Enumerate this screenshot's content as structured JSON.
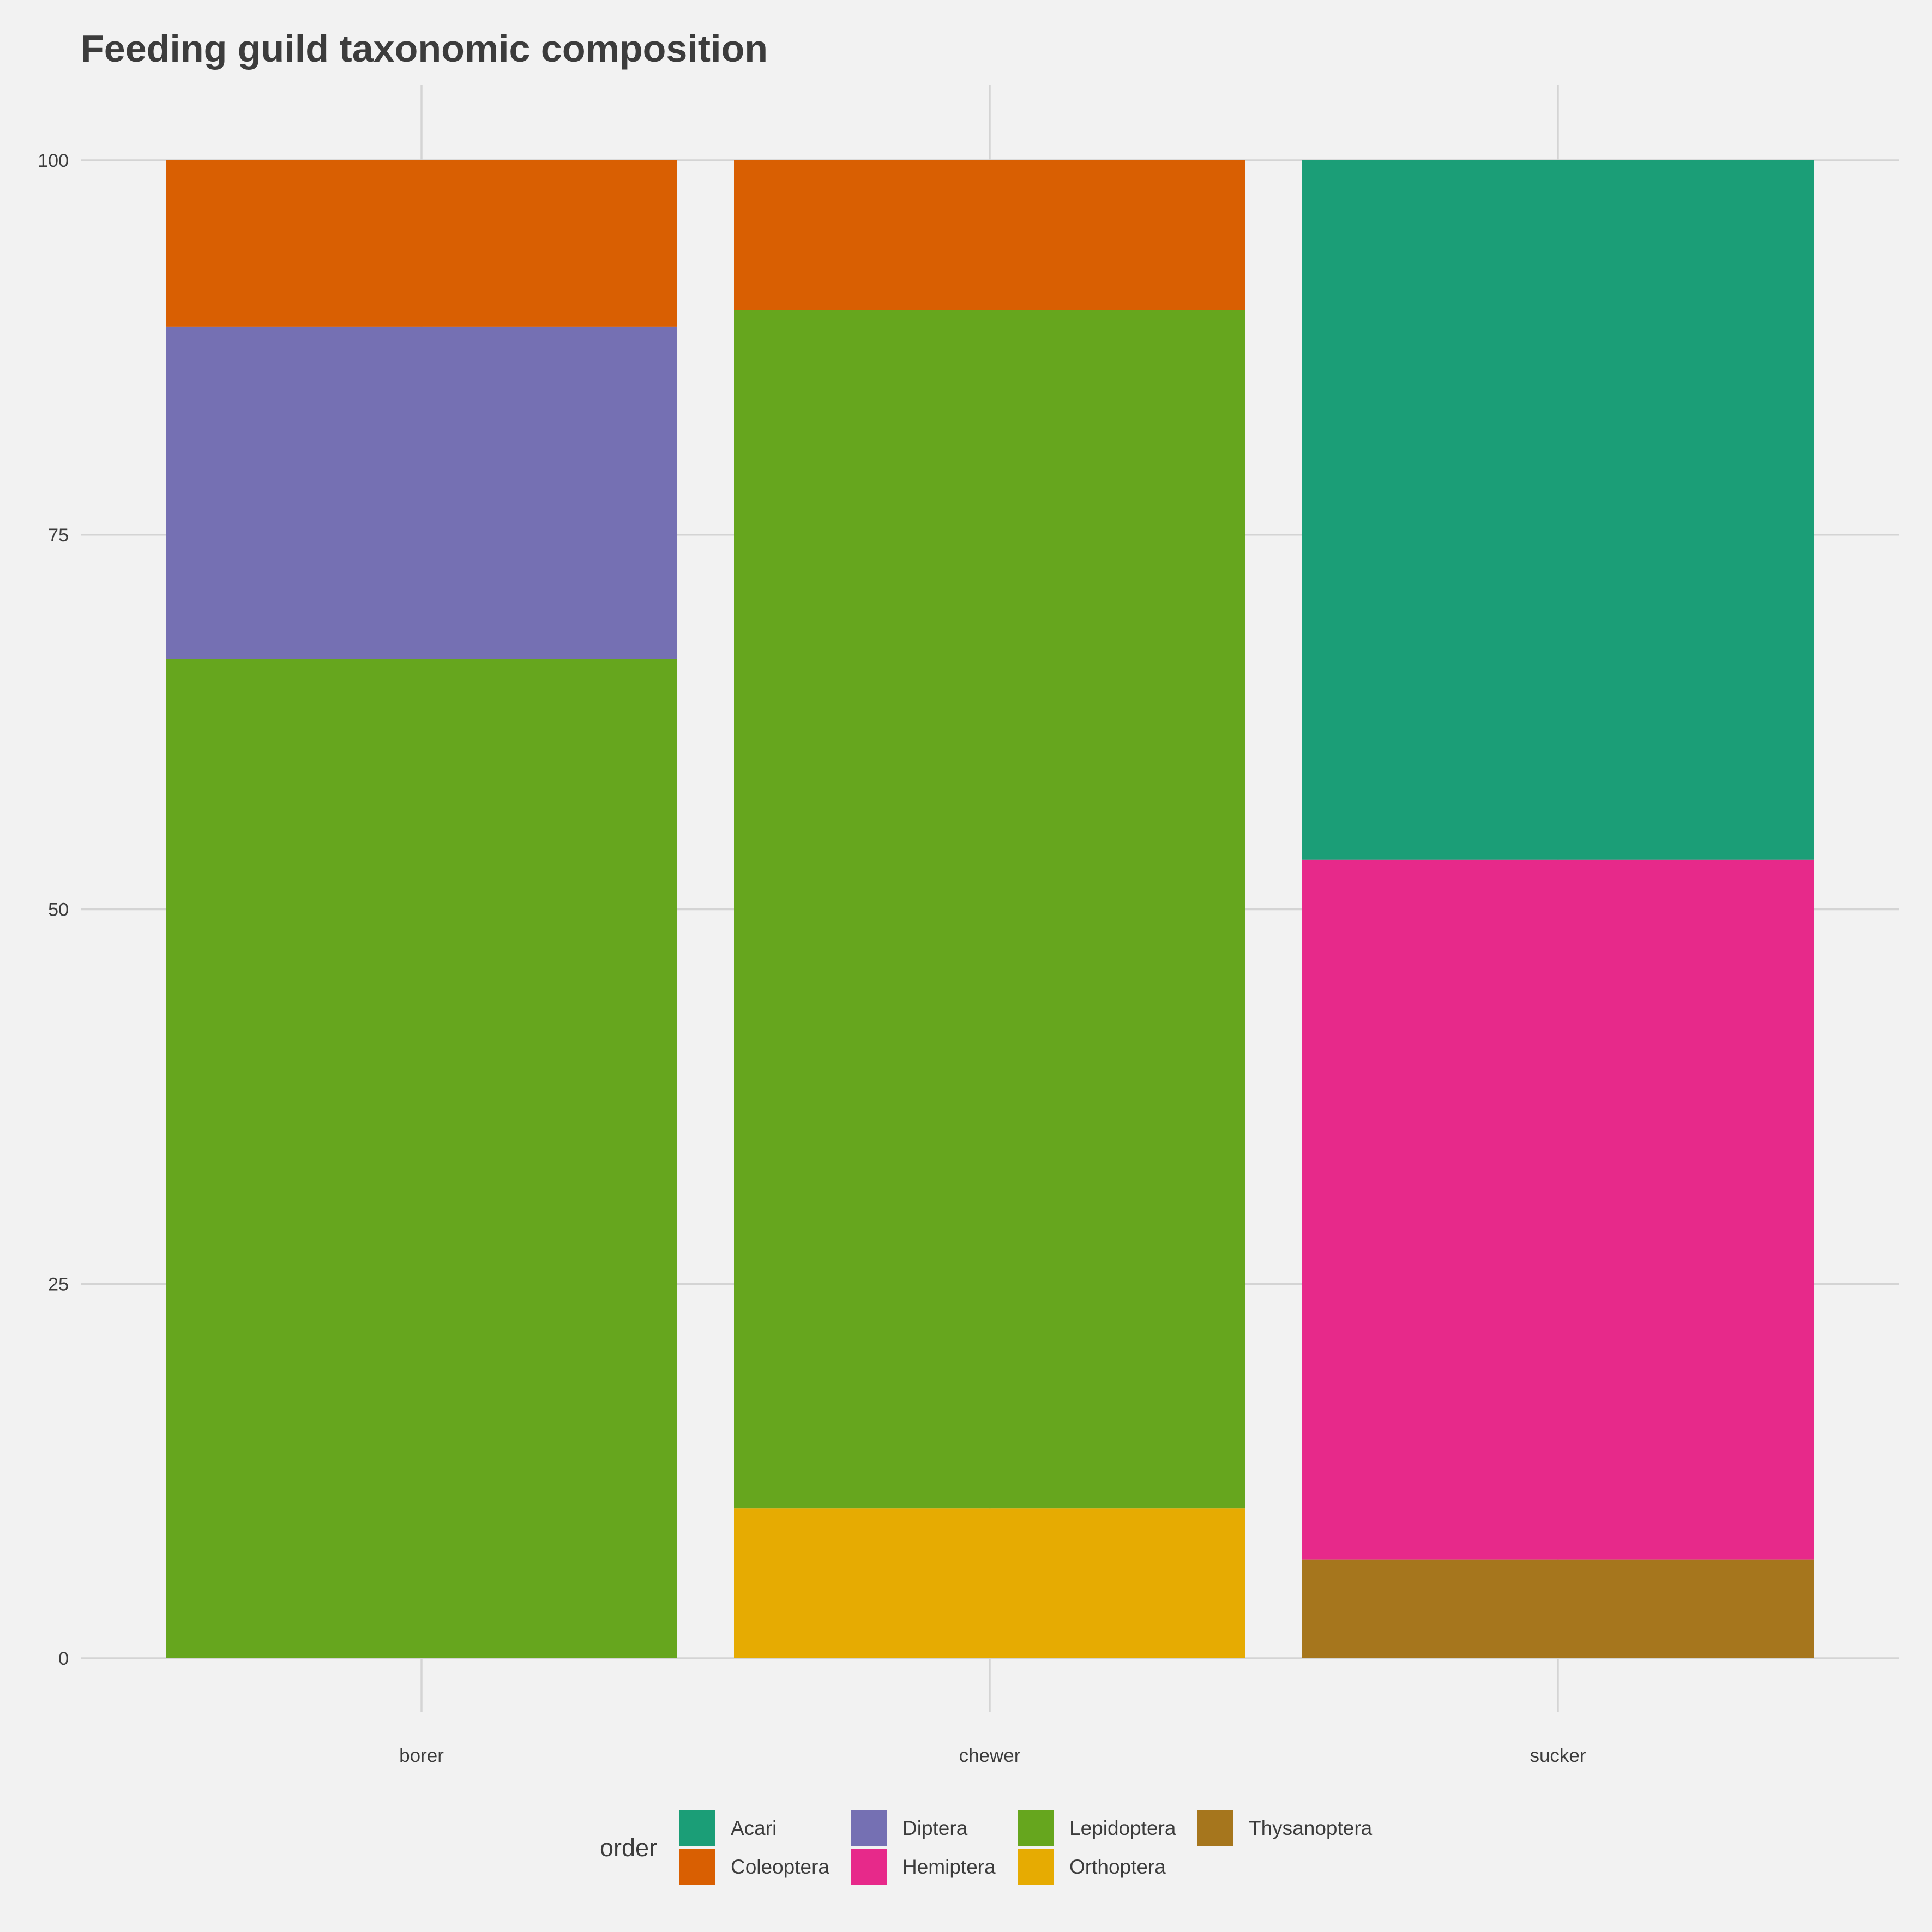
{
  "chart_data": {
    "type": "bar",
    "stacked": true,
    "title": "Feeding guild taxonomic composition",
    "xlabel": "",
    "ylabel": "",
    "categories": [
      "borer",
      "chewer",
      "sucker"
    ],
    "ylim": [
      0,
      100
    ],
    "yticks": [
      "0",
      "25",
      "50",
      "75",
      "100"
    ],
    "grid": true,
    "legend_title": "order",
    "legend_position": "bottom",
    "legend": [
      "Acari",
      "Coleoptera",
      "Diptera",
      "Hemiptera",
      "Lepidoptera",
      "Orthoptera",
      "Thysanoptera"
    ],
    "colors": {
      "Acari": "#1b9e77",
      "Coleoptera": "#d95f02",
      "Diptera": "#7570b3",
      "Hemiptera": "#e7298a",
      "Lepidoptera": "#66a61e",
      "Orthoptera": "#e6ab02",
      "Thysanoptera": "#a6761d"
    },
    "stack_order": [
      "Coleoptera",
      "Acari",
      "Diptera",
      "Hemiptera",
      "Lepidoptera",
      "Orthoptera",
      "Thysanoptera"
    ],
    "series": [
      {
        "name": "Acari",
        "values": [
          0,
          0,
          46.7
        ]
      },
      {
        "name": "Coleoptera",
        "values": [
          11.1,
          10,
          0
        ]
      },
      {
        "name": "Diptera",
        "values": [
          22.2,
          0,
          0
        ]
      },
      {
        "name": "Hemiptera",
        "values": [
          0,
          0,
          46.7
        ]
      },
      {
        "name": "Lepidoptera",
        "values": [
          66.7,
          80,
          0
        ]
      },
      {
        "name": "Orthoptera",
        "values": [
          0,
          10,
          0
        ]
      },
      {
        "name": "Thysanoptera",
        "values": [
          0,
          0,
          6.6
        ]
      }
    ]
  }
}
